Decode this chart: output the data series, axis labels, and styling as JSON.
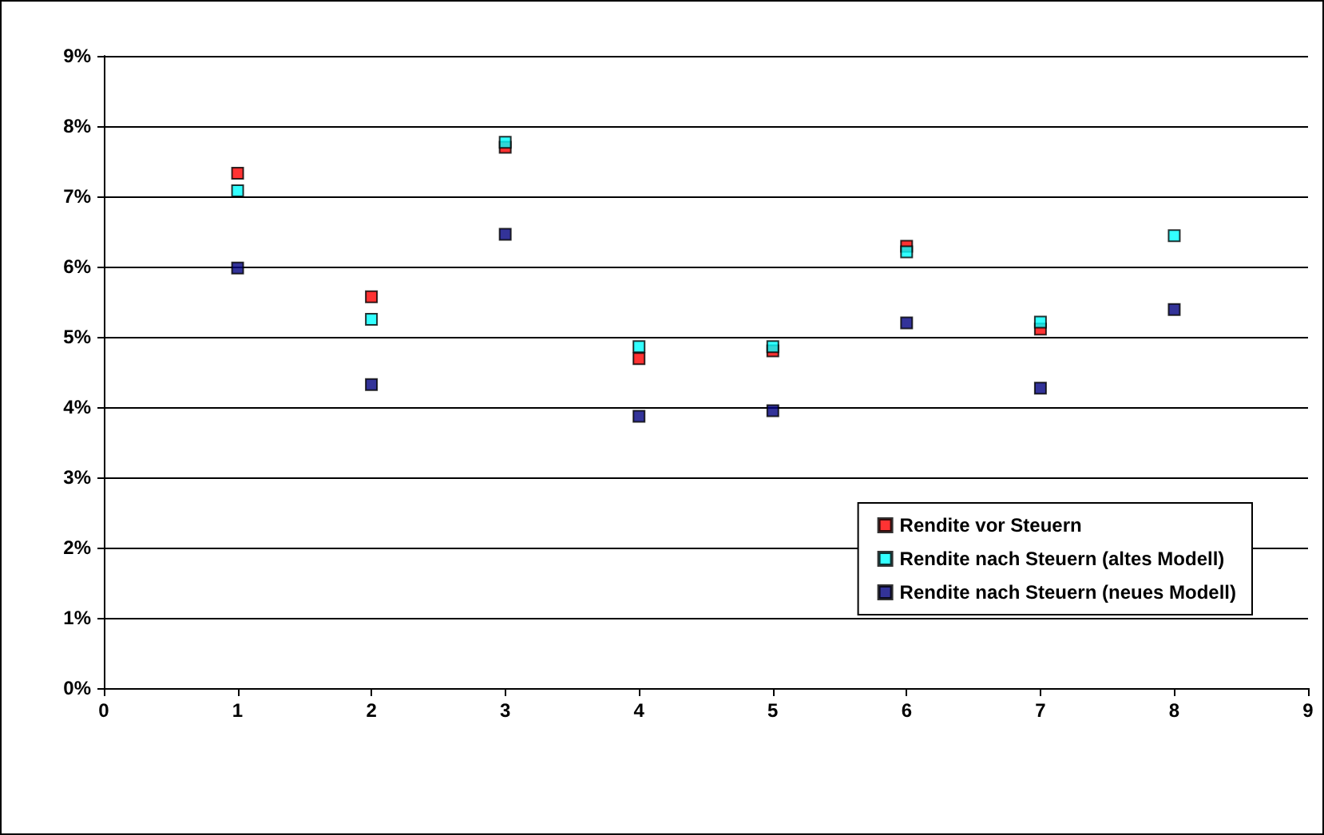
{
  "chart_data": {
    "type": "scatter",
    "x": [
      1,
      2,
      3,
      4,
      5,
      6,
      7,
      8
    ],
    "series": [
      {
        "name": "Rendite vor Steuern",
        "color": "#ff0000",
        "values": [
          7.33,
          5.57,
          7.7,
          4.69,
          4.8,
          6.29,
          5.11,
          null
        ]
      },
      {
        "name": "Rendite nach Steuern (altes Modell)",
        "color": "#00ffff",
        "values": [
          7.08,
          5.25,
          7.77,
          4.86,
          4.86,
          6.21,
          5.21,
          6.44
        ]
      },
      {
        "name": "Rendite nach Steuern (neues Modell)",
        "color": "#000080",
        "values": [
          5.98,
          4.32,
          6.46,
          3.87,
          3.95,
          5.2,
          4.27,
          5.39
        ]
      }
    ],
    "xlim": [
      0,
      9
    ],
    "xticks": [
      0,
      1,
      2,
      3,
      4,
      5,
      6,
      7,
      8,
      9
    ],
    "ylim": [
      0,
      9
    ],
    "yticks": [
      {
        "value": 0,
        "label": "0%"
      },
      {
        "value": 1,
        "label": "1%"
      },
      {
        "value": 2,
        "label": "2%"
      },
      {
        "value": 3,
        "label": "3%"
      },
      {
        "value": 4,
        "label": "4%"
      },
      {
        "value": 5,
        "label": "5%"
      },
      {
        "value": 6,
        "label": "6%"
      },
      {
        "value": 7,
        "label": "7%"
      },
      {
        "value": 8,
        "label": "8%"
      },
      {
        "value": 9,
        "label": "9%"
      }
    ],
    "grid": "y",
    "legend": "bottom right",
    "marker": "square"
  }
}
